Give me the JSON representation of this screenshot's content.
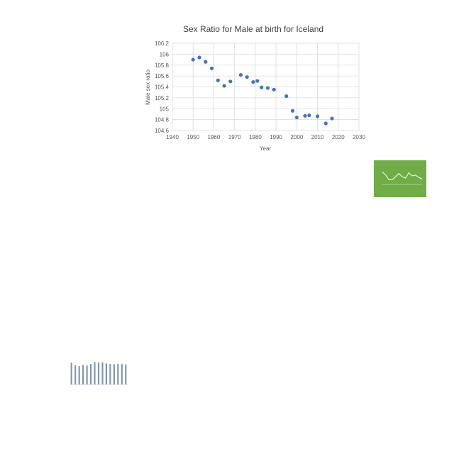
{
  "colors": {
    "point": "#4472c4",
    "grid": "#d9d9d9",
    "text": "#595959",
    "thumb_green": "#70ad47",
    "thumb_bar": "#8496b0"
  },
  "chart_data": [
    {
      "type": "scatter",
      "title": "Sex Ratio for Male at birth for Iceland",
      "xlabel": "Year",
      "ylabel": "Male sex ratio",
      "xlim": [
        1940,
        2030
      ],
      "ylim": [
        104.6,
        106.2
      ],
      "x_ticks": [
        "1940",
        "1950",
        "1960",
        "1970",
        "1980",
        "1990",
        "2000",
        "2010",
        "2020",
        "2030"
      ],
      "y_ticks": [
        "106.2",
        "106",
        "105.8",
        "105.6",
        "105.4",
        "105.2",
        "105",
        "104.8",
        "104.6"
      ],
      "grid": true,
      "legend": "none",
      "points": [
        {
          "x": 1950,
          "y": 105.9
        },
        {
          "x": 1953,
          "y": 105.94
        },
        {
          "x": 1956,
          "y": 105.86
        },
        {
          "x": 1959,
          "y": 105.74
        },
        {
          "x": 1962,
          "y": 105.52
        },
        {
          "x": 1965,
          "y": 105.42
        },
        {
          "x": 1968,
          "y": 105.5
        },
        {
          "x": 1973,
          "y": 105.62
        },
        {
          "x": 1976,
          "y": 105.58
        },
        {
          "x": 1979,
          "y": 105.49
        },
        {
          "x": 1981,
          "y": 105.51
        },
        {
          "x": 1983,
          "y": 105.39
        },
        {
          "x": 1986,
          "y": 105.38
        },
        {
          "x": 1989,
          "y": 105.35
        },
        {
          "x": 1995,
          "y": 105.23
        },
        {
          "x": 1998,
          "y": 104.96
        },
        {
          "x": 2000,
          "y": 104.84
        },
        {
          "x": 2004,
          "y": 104.87
        },
        {
          "x": 2006,
          "y": 104.88
        },
        {
          "x": 2010,
          "y": 104.86
        },
        {
          "x": 2014,
          "y": 104.73
        },
        {
          "x": 2017,
          "y": 104.82
        }
      ]
    },
    {
      "type": "line",
      "values": [
        0.8,
        0.6,
        0.3,
        0.3,
        0.5,
        0.7,
        0.5,
        0.4,
        0.75,
        0.55,
        0.6,
        0.45,
        0.35
      ]
    },
    {
      "type": "bar",
      "values": [
        0.85,
        0.75,
        0.72,
        0.76,
        0.74,
        0.8,
        0.88,
        0.86,
        0.87,
        0.82,
        0.8,
        0.79,
        0.81,
        0.8,
        0.78
      ]
    }
  ]
}
